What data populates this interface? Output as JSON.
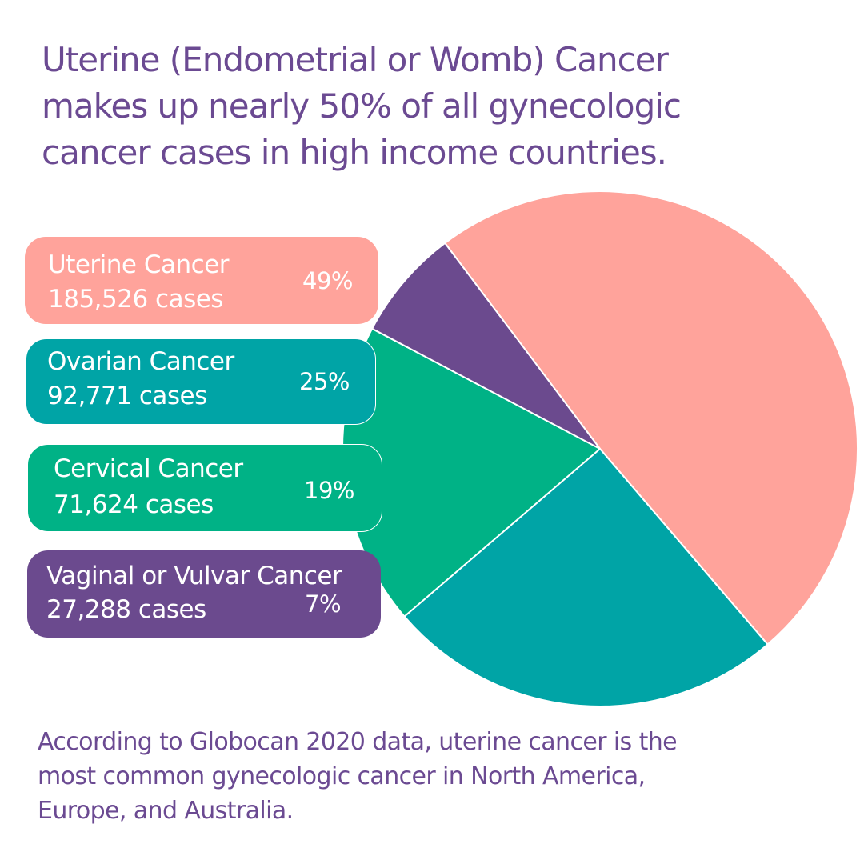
{
  "headline": {
    "line1": "Uterine (Endometrial or Womb) Cancer",
    "line2": "makes up nearly 50% of all gynecologic",
    "line3": "cancer cases in high income countries."
  },
  "chart_data": {
    "type": "pie",
    "title": "Uterine (Endometrial or Womb) Cancer makes up nearly 50% of all gynecologic cancer cases in high income countries.",
    "slices": [
      {
        "label": "Uterine Cancer",
        "cases_text": "185,526 cases",
        "cases": 185526,
        "percent_text": "49%",
        "percent": 49,
        "color": "#ffa39b"
      },
      {
        "label": "Ovarian Cancer",
        "cases_text": "92,771 cases",
        "cases": 92771,
        "percent_text": "25%",
        "percent": 25,
        "color": "#00a4a6"
      },
      {
        "label": "Cervical Cancer",
        "cases_text": "71,624 cases",
        "cases": 71624,
        "percent_text": "19%",
        "percent": 19,
        "color": "#00b286"
      },
      {
        "label": "Vaginal or Vulvar Cancer",
        "cases_text": "27,288 cases",
        "cases": 27288,
        "percent_text": "7%",
        "percent": 7,
        "color": "#6b4a8e"
      }
    ],
    "legend_position": "left"
  },
  "footnote": {
    "line1": "According to Globocan 2020 data, uterine cancer is the",
    "line2": "most common gynecologic cancer in North America,",
    "line3": "Europe, and Australia."
  },
  "colors": {
    "text_purple": "#6b4a92",
    "uterine": "#ffa39b",
    "ovarian": "#00a4a6",
    "cervical": "#00b286",
    "vaginal": "#6b4a8e"
  }
}
